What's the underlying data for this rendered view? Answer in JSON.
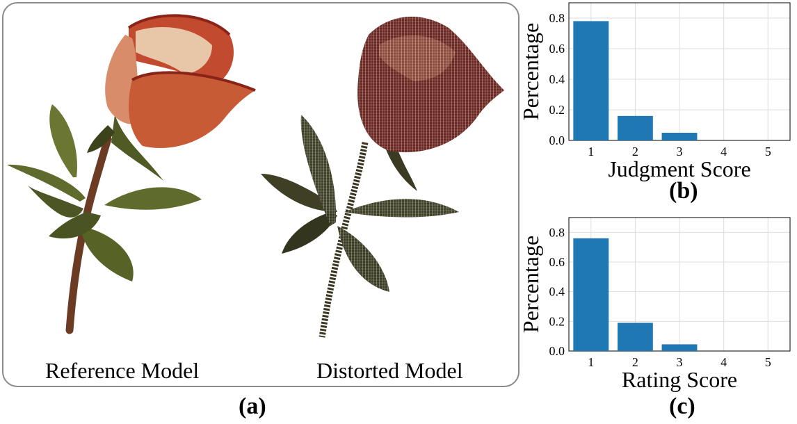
{
  "panel_a": {
    "reference_caption": "Reference Model",
    "distorted_caption": "Distorted Model",
    "label": "(a)",
    "colors": {
      "petal_light": "#e8c6a8",
      "petal_red": "#c24a2e",
      "petal_edge": "#8a2418",
      "leaf": "#5f6b2c",
      "leaf_dark": "#3c421c",
      "stem": "#6b3b24",
      "distorted_flower": "#6a2620",
      "distorted_leaf": "#3e3f25"
    }
  },
  "panel_b_label": "(b)",
  "panel_c_label": "(c)",
  "chart_data": [
    {
      "type": "bar",
      "panel": "b",
      "categories": [
        "1",
        "2",
        "3",
        "4",
        "5"
      ],
      "values": [
        0.78,
        0.16,
        0.05,
        0.0,
        0.0
      ],
      "title": "",
      "xlabel": "Judgment Score",
      "ylabel": "Percentage",
      "ylim": [
        0,
        0.9
      ],
      "yticks": [
        "0.0",
        "0.2",
        "0.4",
        "0.6",
        "0.8"
      ],
      "grid": true,
      "bar_color": "#1f77b4"
    },
    {
      "type": "bar",
      "panel": "c",
      "categories": [
        "1",
        "2",
        "3",
        "4",
        "5"
      ],
      "values": [
        0.76,
        0.19,
        0.045,
        0.0,
        0.0
      ],
      "title": "",
      "xlabel": "Rating Score",
      "ylabel": "Percentage",
      "ylim": [
        0,
        0.9
      ],
      "yticks": [
        "0.0",
        "0.2",
        "0.4",
        "0.6",
        "0.8"
      ],
      "grid": true,
      "bar_color": "#1f77b4"
    }
  ]
}
